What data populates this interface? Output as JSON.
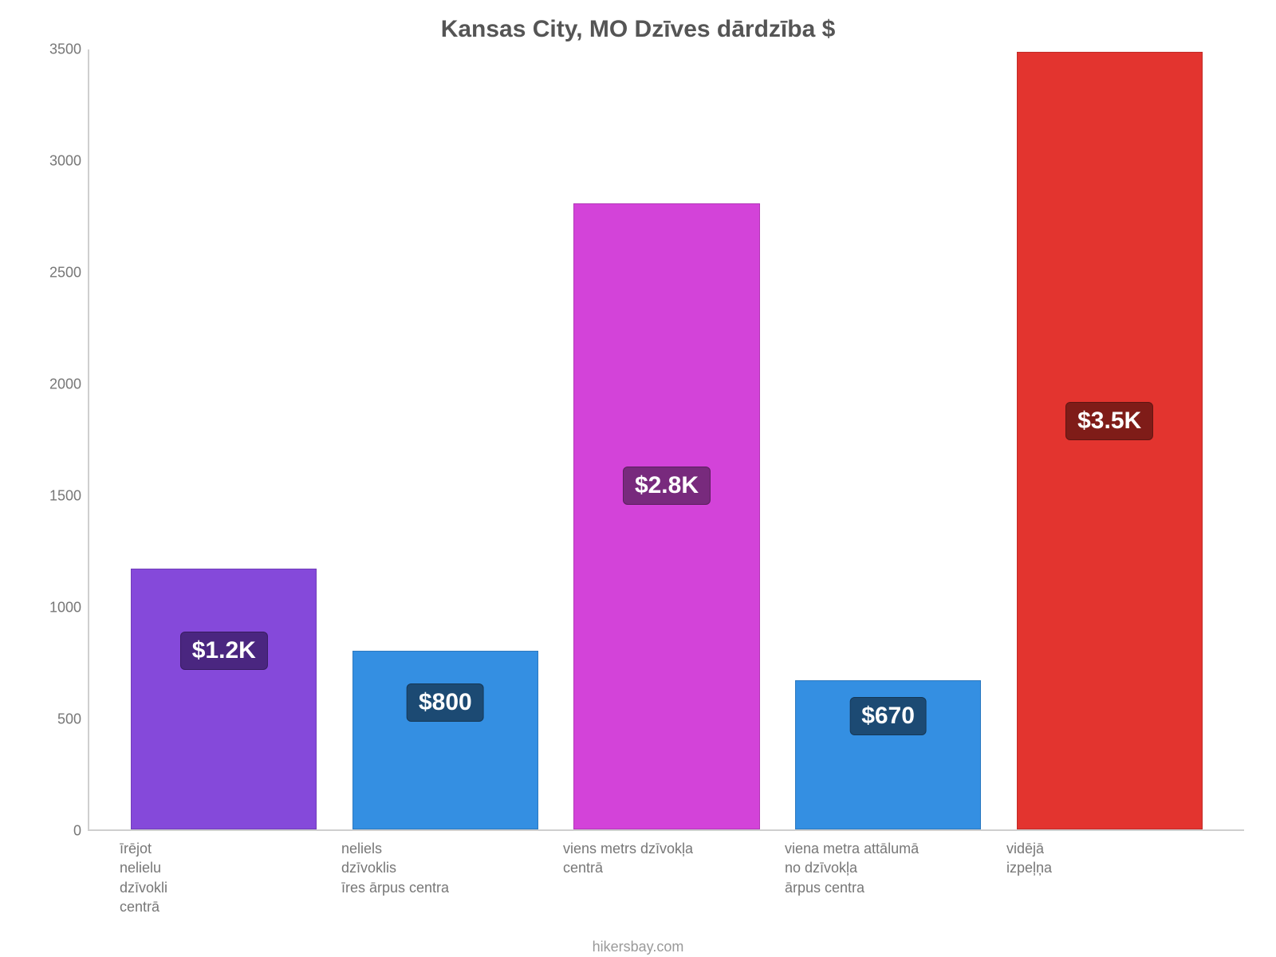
{
  "chart": {
    "type": "bar",
    "title": "Kansas City, MO Dzīves dārdzība $",
    "title_color": "#555555",
    "title_fontsize": 30,
    "background_color": "#ffffff",
    "axis_line_color": "#cfcfcf",
    "tick_label_color": "#777777",
    "tick_fontsize": 18,
    "x_label_fontsize": 18,
    "ylim": [
      0,
      3500
    ],
    "ytick_step": 500,
    "yticks": [
      0,
      500,
      1000,
      1500,
      2000,
      2500,
      3000,
      3500
    ],
    "bar_width_ratio": 0.84,
    "badge_fontsize": 30,
    "footer": "hikersbay.com",
    "footer_color": "#9a9a9a",
    "bars": [
      {
        "label_lines": [
          "īrējot",
          "nelielu",
          "dzīvokli",
          "centrā"
        ],
        "value": 1170,
        "value_label": "$1.2K",
        "bar_color": "#8549da",
        "badge_bg": "#4a2680",
        "badge_top_pct": 24
      },
      {
        "label_lines": [
          "neliels",
          "dzīvoklis",
          "īres ārpus centra"
        ],
        "value": 800,
        "value_label": "$800",
        "bar_color": "#348fe2",
        "badge_bg": "#1c4a73",
        "badge_top_pct": 18
      },
      {
        "label_lines": [
          "viens metrs dzīvokļa",
          "centrā"
        ],
        "value": 2810,
        "value_label": "$2.8K",
        "bar_color": "#d343d9",
        "badge_bg": "#782a7d",
        "badge_top_pct": 42
      },
      {
        "label_lines": [
          "viena metra attālumā",
          "no dzīvokļa",
          "ārpus centra"
        ],
        "value": 670,
        "value_label": "$670",
        "bar_color": "#348fe2",
        "badge_bg": "#1c4a73",
        "badge_top_pct": 11
      },
      {
        "label_lines": [
          "vidējā",
          "izpeļņa"
        ],
        "value": 3490,
        "value_label": "$3.5K",
        "bar_color": "#e3342f",
        "badge_bg": "#7f1c18",
        "badge_top_pct": 45
      }
    ]
  }
}
